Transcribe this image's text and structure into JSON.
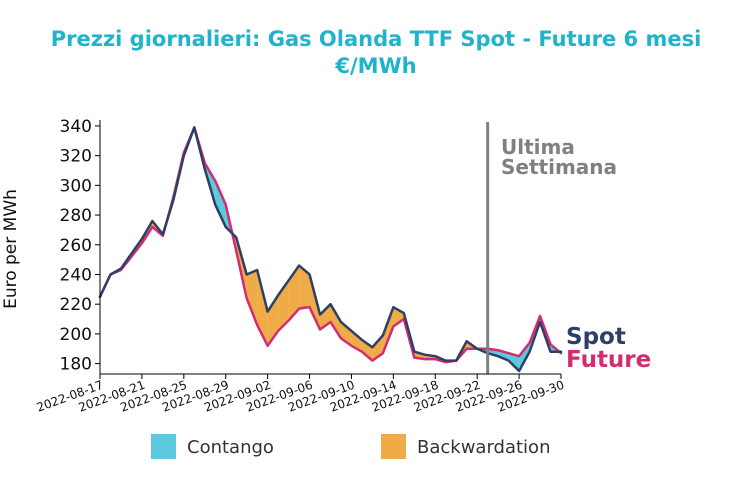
{
  "chart_data": {
    "type": "line",
    "title_line1": "Prezzi giornalieri: Gas Olanda TTF Spot - Future 6 mesi",
    "title_line2": "€/MWh",
    "ylabel": "Euro per MWh",
    "xlabel": "",
    "ylim": [
      173,
      344
    ],
    "yticks": [
      180,
      200,
      220,
      240,
      260,
      280,
      300,
      320,
      340
    ],
    "xtick_labels": [
      "2022-08-17",
      "2022-08-21",
      "2022-08-25",
      "2022-08-29",
      "2022-09-02",
      "2022-09-06",
      "2022-09-10",
      "2022-09-14",
      "2022-09-18",
      "2022-09-22",
      "2022-09-26",
      "2022-09-30"
    ],
    "x_start": "2022-08-17",
    "x_end": "2022-09-30",
    "grid": false,
    "annotation": [
      "Ultima",
      "Settimana"
    ],
    "annotation_date": "2022-09-23",
    "colors": {
      "spot": "#2e3f65",
      "future": "#d52b72",
      "contango": "#5bc8dd",
      "backwardation": "#eeab46",
      "title": "#1fb3cc",
      "vline": "#808080"
    },
    "series": [
      {
        "name": "Spot",
        "points": [
          [
            "2022-08-17",
            225
          ],
          [
            "2022-08-18",
            240
          ],
          [
            "2022-08-19",
            244
          ],
          [
            "2022-08-20",
            254
          ],
          [
            "2022-08-21",
            264
          ],
          [
            "2022-08-22",
            276
          ],
          [
            "2022-08-23",
            267
          ],
          [
            "2022-08-24",
            290
          ],
          [
            "2022-08-25",
            320
          ],
          [
            "2022-08-26",
            339
          ],
          [
            "2022-08-27",
            311
          ],
          [
            "2022-08-28",
            287
          ],
          [
            "2022-08-29",
            272
          ],
          [
            "2022-08-30",
            265
          ],
          [
            "2022-08-31",
            240
          ],
          [
            "2022-09-01",
            243
          ],
          [
            "2022-09-02",
            215
          ],
          [
            "2022-09-03",
            226
          ],
          [
            "2022-09-04",
            236
          ],
          [
            "2022-09-05",
            246
          ],
          [
            "2022-09-06",
            240
          ],
          [
            "2022-09-07",
            213
          ],
          [
            "2022-09-08",
            220
          ],
          [
            "2022-09-09",
            208
          ],
          [
            "2022-09-10",
            202
          ],
          [
            "2022-09-11",
            196
          ],
          [
            "2022-09-12",
            191
          ],
          [
            "2022-09-13",
            199
          ],
          [
            "2022-09-14",
            218
          ],
          [
            "2022-09-15",
            214
          ],
          [
            "2022-09-16",
            188
          ],
          [
            "2022-09-17",
            186
          ],
          [
            "2022-09-18",
            185
          ],
          [
            "2022-09-19",
            182
          ],
          [
            "2022-09-20",
            182
          ],
          [
            "2022-09-21",
            195
          ],
          [
            "2022-09-22",
            190
          ],
          [
            "2022-09-23",
            187
          ],
          [
            "2022-09-24",
            185
          ],
          [
            "2022-09-25",
            182
          ],
          [
            "2022-09-26",
            175
          ],
          [
            "2022-09-27",
            188
          ],
          [
            "2022-09-28",
            208
          ],
          [
            "2022-09-29",
            188
          ],
          [
            "2022-09-30",
            188
          ]
        ]
      },
      {
        "name": "Future",
        "points": [
          [
            "2022-08-17",
            225
          ],
          [
            "2022-08-18",
            240
          ],
          [
            "2022-08-19",
            243
          ],
          [
            "2022-08-20",
            252
          ],
          [
            "2022-08-21",
            261
          ],
          [
            "2022-08-22",
            272
          ],
          [
            "2022-08-23",
            266
          ],
          [
            "2022-08-24",
            292
          ],
          [
            "2022-08-25",
            322
          ],
          [
            "2022-08-26",
            339
          ],
          [
            "2022-08-27",
            315
          ],
          [
            "2022-08-28",
            303
          ],
          [
            "2022-08-29",
            287
          ],
          [
            "2022-08-30",
            256
          ],
          [
            "2022-08-31",
            224
          ],
          [
            "2022-09-01",
            206
          ],
          [
            "2022-09-02",
            192
          ],
          [
            "2022-09-03",
            202
          ],
          [
            "2022-09-04",
            209
          ],
          [
            "2022-09-05",
            217
          ],
          [
            "2022-09-06",
            218
          ],
          [
            "2022-09-07",
            203
          ],
          [
            "2022-09-08",
            208
          ],
          [
            "2022-09-09",
            197
          ],
          [
            "2022-09-10",
            192
          ],
          [
            "2022-09-11",
            188
          ],
          [
            "2022-09-12",
            182
          ],
          [
            "2022-09-13",
            187
          ],
          [
            "2022-09-14",
            205
          ],
          [
            "2022-09-15",
            210
          ],
          [
            "2022-09-16",
            184
          ],
          [
            "2022-09-17",
            183
          ],
          [
            "2022-09-18",
            183
          ],
          [
            "2022-09-19",
            181
          ],
          [
            "2022-09-20",
            182
          ],
          [
            "2022-09-21",
            190
          ],
          [
            "2022-09-22",
            190
          ],
          [
            "2022-09-23",
            190
          ],
          [
            "2022-09-24",
            189
          ],
          [
            "2022-09-25",
            187
          ],
          [
            "2022-09-26",
            185
          ],
          [
            "2022-09-27",
            194
          ],
          [
            "2022-09-28",
            212
          ],
          [
            "2022-09-29",
            193
          ],
          [
            "2022-09-30",
            187
          ]
        ]
      }
    ],
    "legend": {
      "placement": "bottom-center",
      "items": [
        {
          "label": "Contango",
          "color": "#5bc8dd"
        },
        {
          "label": "Backwardation",
          "color": "#eeab46"
        }
      ]
    }
  }
}
